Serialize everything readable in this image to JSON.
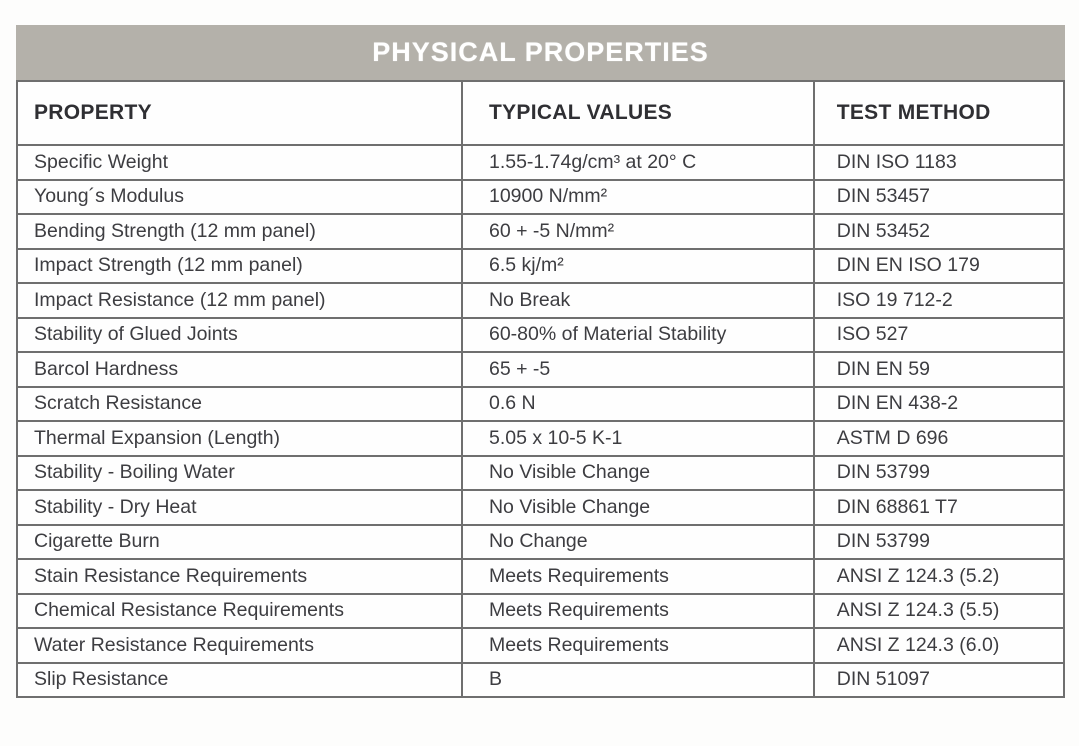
{
  "colors": {
    "title_band": "#b4b1aa",
    "title_text": "#ffffff",
    "table_border": "#6f6f6f",
    "body_text": "#3d3d41"
  },
  "table": {
    "title": "PHYSICAL PROPERTIES",
    "columns": [
      "PROPERTY",
      "TYPICAL VALUES",
      "TEST METHOD"
    ],
    "rows": [
      {
        "property": "Specific Weight",
        "typical_value": "1.55-1.74g/cm³ at 20° C",
        "test_method": "DIN ISO 1183"
      },
      {
        "property": "Young´s Modulus",
        "typical_value": "10900 N/mm²",
        "test_method": "DIN 53457"
      },
      {
        "property": "Bending Strength (12 mm panel)",
        "typical_value": "60 + -5 N/mm²",
        "test_method": "DIN 53452"
      },
      {
        "property": "Impact Strength (12 mm panel)",
        "typical_value": "6.5 kj/m²",
        "test_method": "DIN EN ISO 179"
      },
      {
        "property": "Impact Resistance (12 mm panel)",
        "typical_value": "No Break",
        "test_method": "ISO 19 712-2"
      },
      {
        "property": "Stability of Glued Joints",
        "typical_value": "60-80% of Material Stability",
        "test_method": "ISO 527"
      },
      {
        "property": "Barcol Hardness",
        "typical_value": "65 + -5",
        "test_method": "DIN EN 59"
      },
      {
        "property": "Scratch Resistance",
        "typical_value": "0.6 N",
        "test_method": "DIN EN 438-2"
      },
      {
        "property": "Thermal Expansion (Length)",
        "typical_value": "5.05 x 10-5 K-1",
        "test_method": "ASTM D 696"
      },
      {
        "property": "Stability - Boiling Water",
        "typical_value": "No Visible Change",
        "test_method": "DIN 53799"
      },
      {
        "property": "Stability - Dry Heat",
        "typical_value": "No Visible Change",
        "test_method": "DIN 68861 T7"
      },
      {
        "property": "Cigarette Burn",
        "typical_value": "No Change",
        "test_method": "DIN 53799"
      },
      {
        "property": "Stain Resistance Requirements",
        "typical_value": "Meets Requirements",
        "test_method": "ANSI Z 124.3 (5.2)"
      },
      {
        "property": "Chemical Resistance Requirements",
        "typical_value": "Meets Requirements",
        "test_method": "ANSI Z 124.3 (5.5)"
      },
      {
        "property": "Water Resistance Requirements",
        "typical_value": "Meets Requirements",
        "test_method": "ANSI Z 124.3 (6.0)"
      },
      {
        "property": "Slip Resistance",
        "typical_value": "B",
        "test_method": "DIN 51097"
      }
    ]
  }
}
